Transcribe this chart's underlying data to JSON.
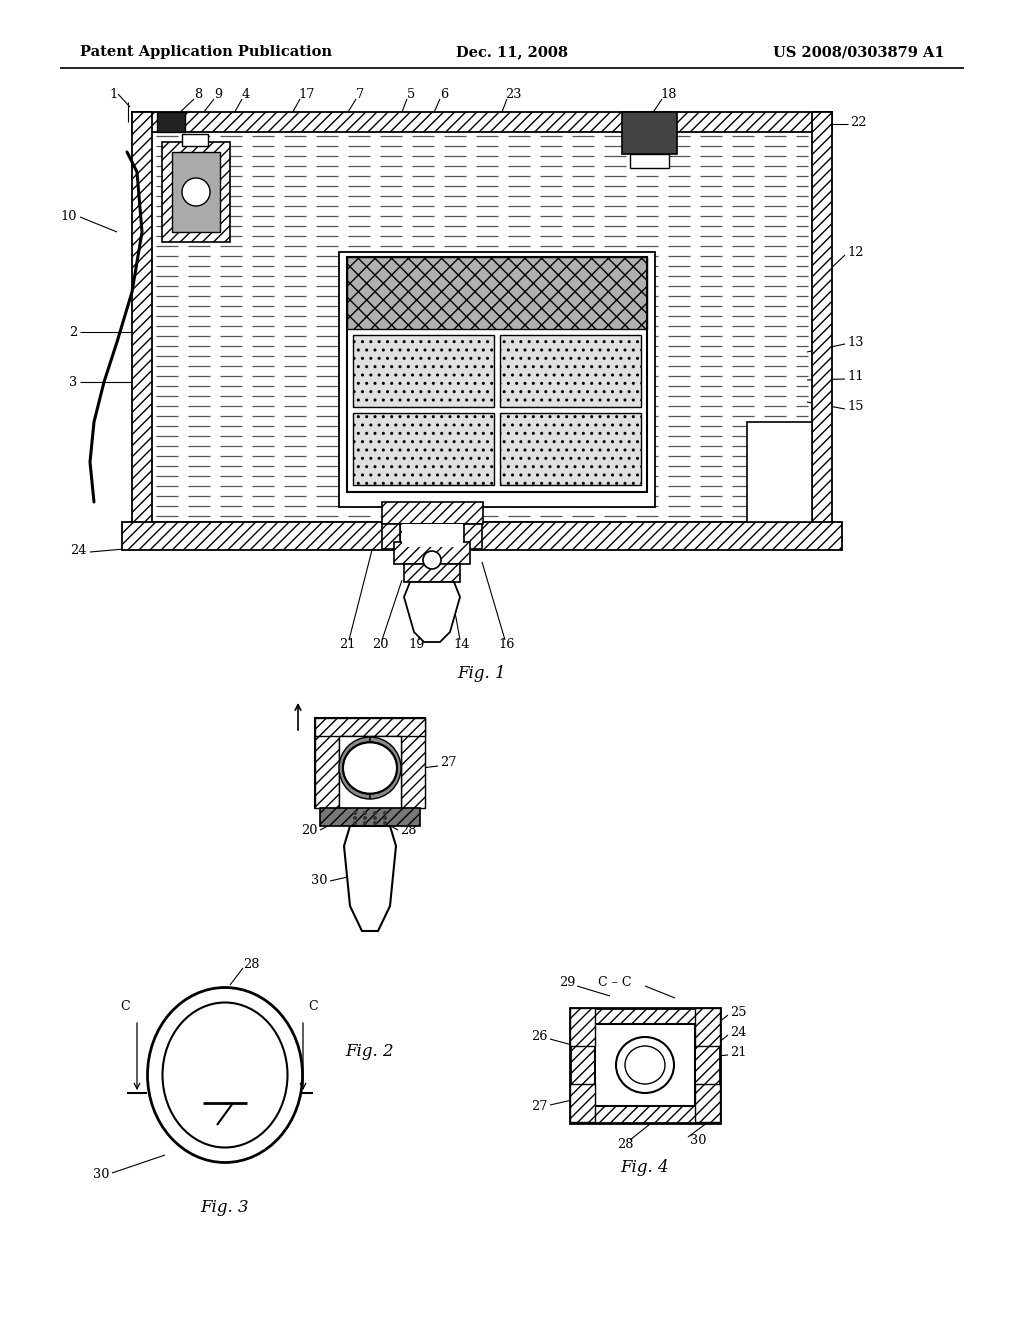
{
  "bg_color": "#ffffff",
  "line_color": "#000000",
  "header_left": "Patent Application Publication",
  "header_center": "Dec. 11, 2008",
  "header_right": "US 2008/0303879 A1",
  "fig1_caption": "Fig. 1",
  "fig2_caption": "Fig. 2",
  "fig3_caption": "Fig. 3",
  "fig4_caption": "Fig. 4",
  "dpi": 100,
  "figsize": [
    10.24,
    13.2
  ]
}
